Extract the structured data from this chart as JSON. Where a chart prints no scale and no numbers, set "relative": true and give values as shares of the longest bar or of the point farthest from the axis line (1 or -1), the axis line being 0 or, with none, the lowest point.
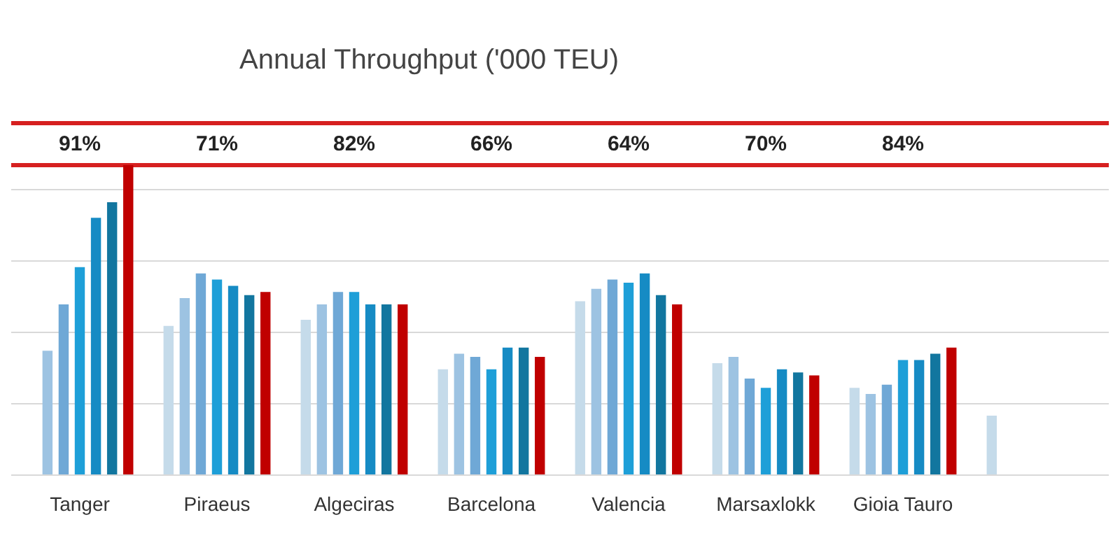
{
  "chart_data": {
    "type": "bar",
    "title": "Annual Throughput ('000 TEU)",
    "relative": true,
    "grid": "y",
    "categories": [
      "Tanger",
      "Piraeus",
      "Algeciras",
      "Barcelona",
      "Valencia",
      "Marsaxlokk",
      "Gioia Tauro",
      null
    ],
    "series": [
      {
        "color": "#c5dbea",
        "values": [
          null,
          0.48,
          0.5,
          0.34,
          0.56,
          0.36,
          0.28,
          0.19
        ]
      },
      {
        "color": "#9dc3e2",
        "values": [
          0.4,
          0.57,
          0.55,
          0.39,
          0.6,
          0.38,
          0.26,
          null
        ]
      },
      {
        "color": "#6fa8d6",
        "values": [
          0.55,
          0.65,
          0.59,
          0.38,
          0.63,
          0.31,
          0.29,
          null
        ]
      },
      {
        "color": "#1e9fd8",
        "values": [
          0.67,
          0.63,
          0.59,
          0.34,
          0.62,
          0.28,
          0.37,
          null
        ]
      },
      {
        "color": "#168bc4",
        "values": [
          0.83,
          0.61,
          0.55,
          0.41,
          0.65,
          0.34,
          0.37,
          null
        ]
      },
      {
        "color": "#12769f",
        "values": [
          0.88,
          0.58,
          0.55,
          0.41,
          0.58,
          0.33,
          0.39,
          null
        ]
      },
      {
        "color": "#c00000",
        "values": [
          1,
          0.59,
          0.55,
          0.38,
          0.55,
          0.32,
          0.41,
          null
        ]
      }
    ],
    "annotations": [
      "91%",
      "71%",
      "82%",
      "66%",
      "64%",
      "70%",
      "84%"
    ]
  }
}
